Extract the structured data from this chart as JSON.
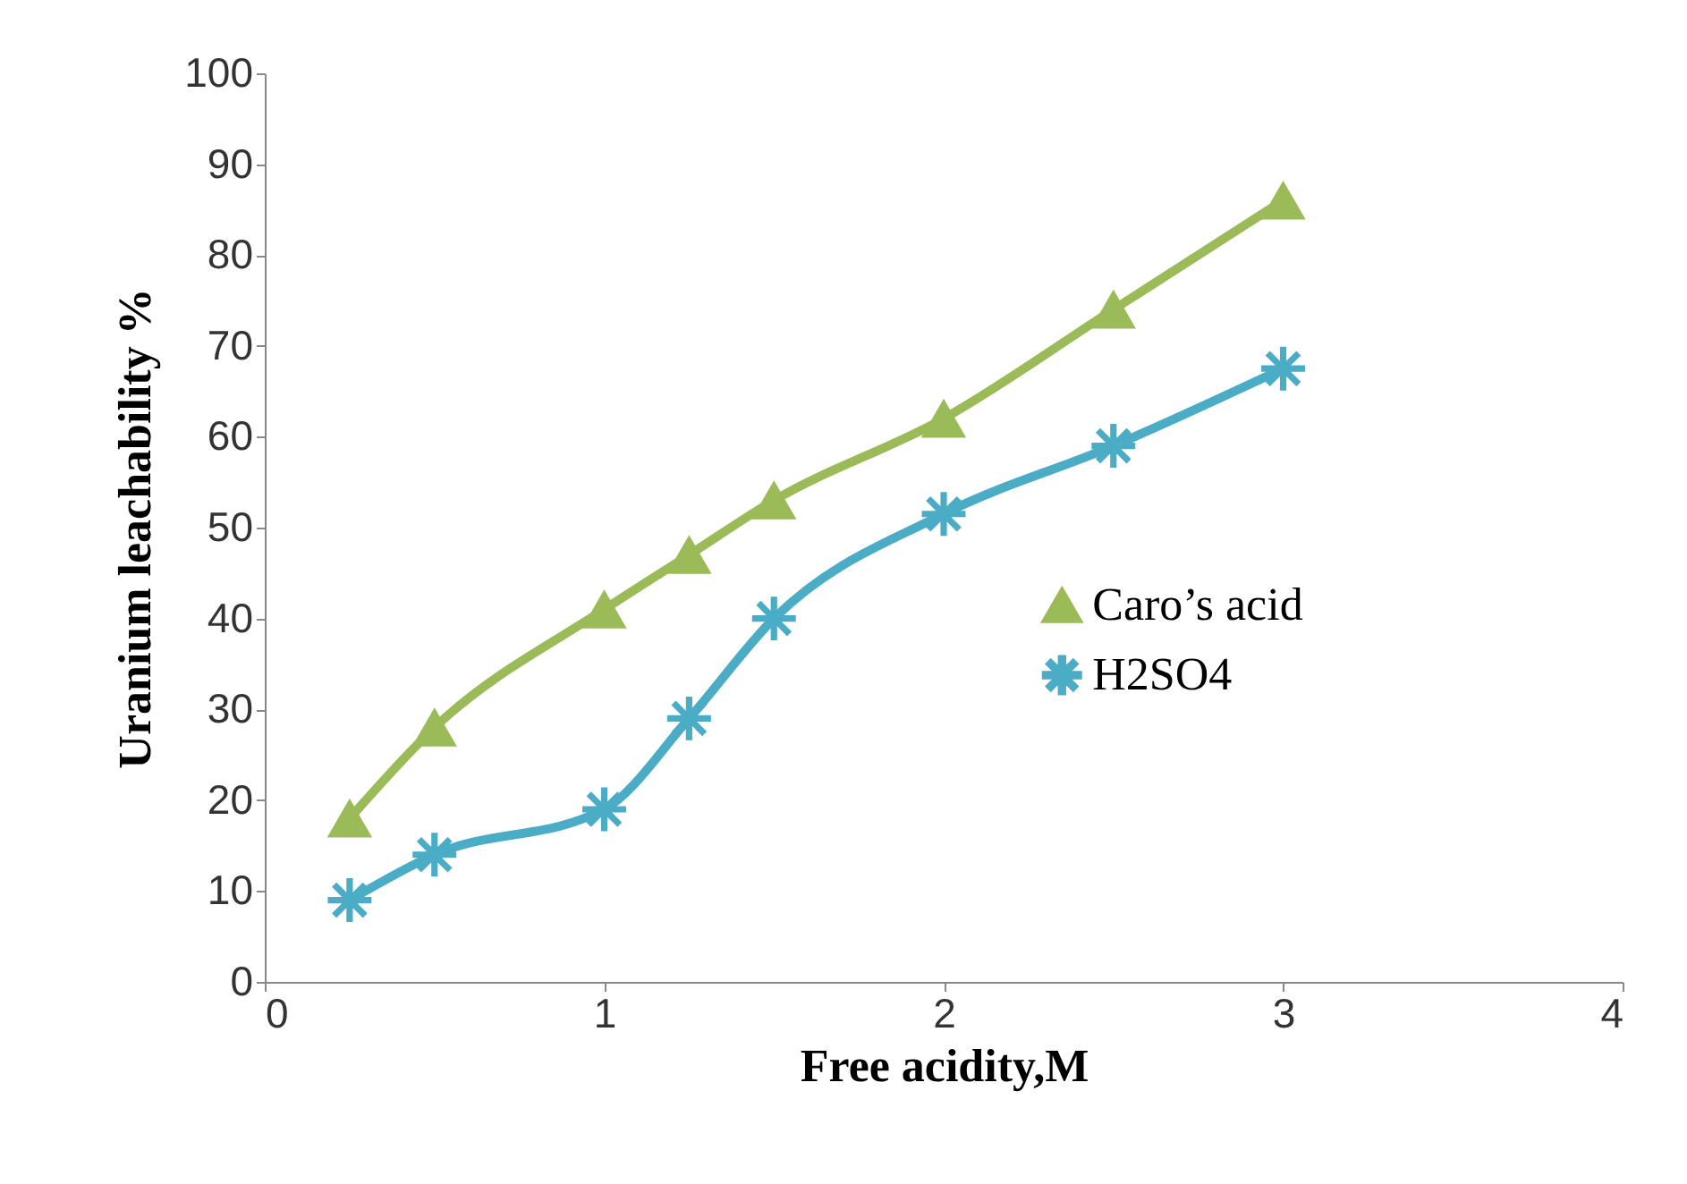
{
  "chart_data": {
    "type": "line",
    "xlabel": "Free acidity,M",
    "ylabel": "Uranium  leachability %",
    "x": [
      0.25,
      0.5,
      1,
      1.25,
      1.5,
      2,
      2.5,
      3
    ],
    "series": [
      {
        "name": "Caro’s acid",
        "color": "#9bbb59",
        "marker": "triangle",
        "values": [
          18,
          28,
          41,
          47,
          53,
          62,
          74,
          86
        ]
      },
      {
        "name": "H2SO4",
        "color": "#4bacc6",
        "marker": "cross",
        "values": [
          9,
          14,
          19,
          29,
          40,
          51.5,
          59,
          67.5
        ]
      }
    ],
    "xlim": [
      0,
      4
    ],
    "xticks": [
      0,
      1,
      2,
      3,
      4
    ],
    "ylim": [
      0,
      100
    ],
    "yticks": [
      0,
      10,
      20,
      30,
      40,
      50,
      60,
      70,
      80,
      90,
      100
    ],
    "grid": false,
    "legend": "right"
  }
}
